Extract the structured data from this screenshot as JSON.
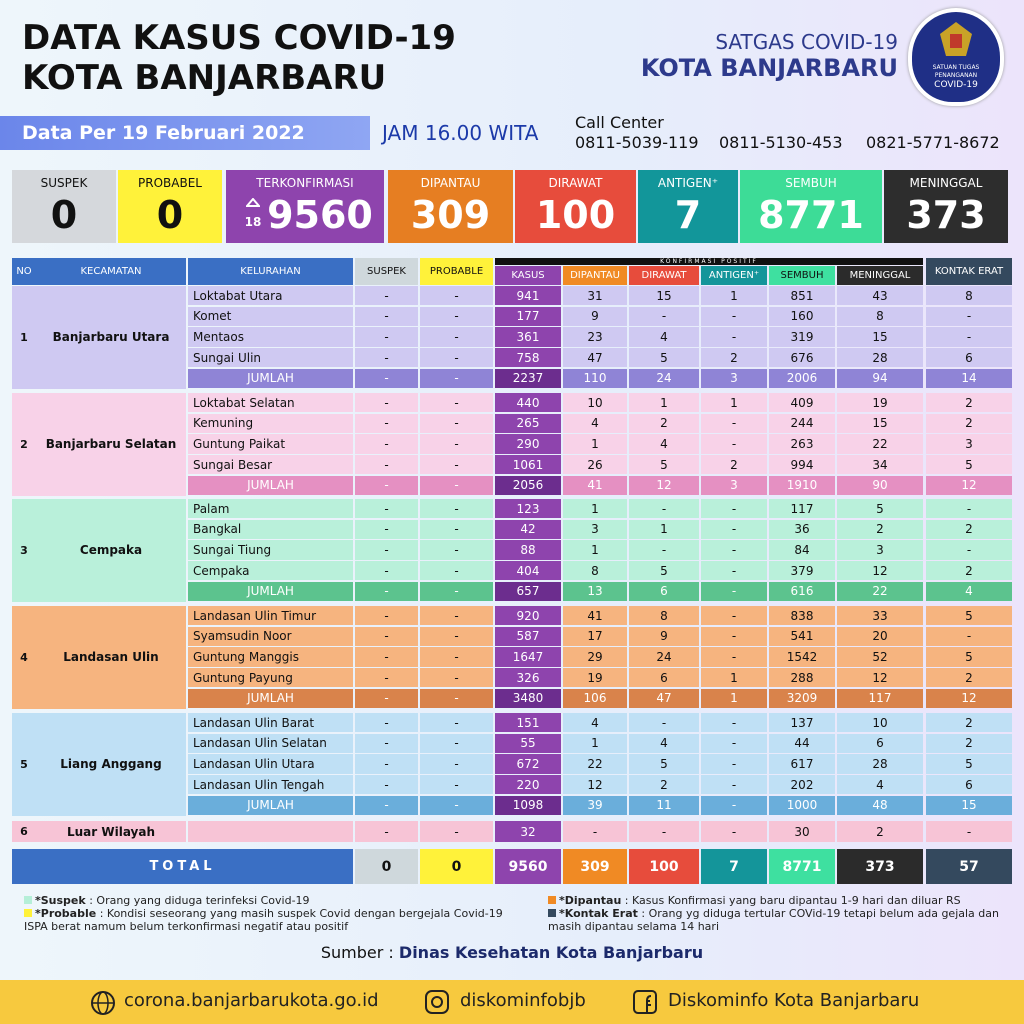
{
  "header": {
    "title_line1": "DATA KASUS COVID-19",
    "title_line2": "KOTA BANJARBARU",
    "org_line1": "SATGAS COVID-19",
    "org_line2": "KOTA BANJARBARU",
    "logo_text": [
      "SATUAN TUGAS",
      "PENANGANAN",
      "COVID-19"
    ]
  },
  "info": {
    "date": "Data Per 19 Februari 2022",
    "time": "JAM 16.00 WITA",
    "call_center_label": "Call Center",
    "phones": [
      "0811-5039-119",
      "0811-5130-453",
      "0821-5771-8672"
    ]
  },
  "summary": [
    {
      "label": "SUSPEK",
      "value": 0
    },
    {
      "label": "PROBABEL",
      "value": 0
    },
    {
      "label": "TERKONFIRMASI",
      "value": 9560,
      "increase": 18
    },
    {
      "label": "DIPANTAU",
      "value": 309
    },
    {
      "label": "DIRAWAT",
      "value": 100
    },
    {
      "label": "ANTIGEN⁺",
      "value": 7
    },
    {
      "label": "SEMBUH",
      "value": 8771
    },
    {
      "label": "MENINGGAL",
      "value": 373
    }
  ],
  "table": {
    "section_label": "KONFIRMASI POSITIF",
    "columns": [
      "NO",
      "KECAMATAN",
      "KELURAHAN",
      "SUSPEK",
      "PROBABLE",
      "KASUS",
      "DIPANTAU",
      "DIRAWAT",
      "ANTIGEN⁺",
      "SEMBUH",
      "MENINGGAL",
      "KONTAK ERAT"
    ],
    "groups": [
      {
        "no": "1",
        "kecamatan": "Banjarbaru Utara",
        "rows": [
          [
            "Loktabat Utara",
            "-",
            "-",
            941,
            31,
            15,
            1,
            851,
            43,
            8
          ],
          [
            "Komet",
            "-",
            "-",
            177,
            9,
            "-",
            "-",
            160,
            8,
            "-"
          ],
          [
            "Mentaos",
            "-",
            "-",
            361,
            23,
            4,
            "-",
            319,
            15,
            "-"
          ],
          [
            "Sungai Ulin",
            "-",
            "-",
            758,
            47,
            5,
            2,
            676,
            28,
            6
          ]
        ],
        "jumlah": [
          "JUMLAH",
          "-",
          "-",
          2237,
          110,
          24,
          3,
          2006,
          94,
          14
        ]
      },
      {
        "no": "2",
        "kecamatan": "Banjarbaru Selatan",
        "rows": [
          [
            "Loktabat Selatan",
            "-",
            "-",
            440,
            10,
            1,
            1,
            409,
            19,
            2
          ],
          [
            "Kemuning",
            "-",
            "-",
            265,
            4,
            2,
            "-",
            244,
            15,
            2
          ],
          [
            "Guntung Paikat",
            "-",
            "-",
            290,
            1,
            4,
            "-",
            263,
            22,
            3
          ],
          [
            "Sungai Besar",
            "-",
            "-",
            1061,
            26,
            5,
            2,
            994,
            34,
            5
          ]
        ],
        "jumlah": [
          "JUMLAH",
          "-",
          "-",
          2056,
          41,
          12,
          3,
          1910,
          90,
          12
        ]
      },
      {
        "no": "3",
        "kecamatan": "Cempaka",
        "rows": [
          [
            "Palam",
            "-",
            "-",
            123,
            1,
            "-",
            "-",
            117,
            5,
            "-"
          ],
          [
            "Bangkal",
            "-",
            "-",
            42,
            3,
            1,
            "-",
            36,
            2,
            2
          ],
          [
            "Sungai Tiung",
            "-",
            "-",
            88,
            1,
            "-",
            "-",
            84,
            3,
            "-"
          ],
          [
            "Cempaka",
            "-",
            "-",
            404,
            8,
            5,
            "-",
            379,
            12,
            2
          ]
        ],
        "jumlah": [
          "JUMLAH",
          "-",
          "-",
          657,
          13,
          6,
          "-",
          616,
          22,
          4
        ]
      },
      {
        "no": "4",
        "kecamatan": "Landasan Ulin",
        "rows": [
          [
            "Landasan Ulin Timur",
            "-",
            "-",
            920,
            41,
            8,
            "-",
            838,
            33,
            5
          ],
          [
            "Syamsudin Noor",
            "-",
            "-",
            587,
            17,
            9,
            "-",
            541,
            20,
            "-"
          ],
          [
            "Guntung Manggis",
            "-",
            "-",
            1647,
            29,
            24,
            "-",
            1542,
            52,
            5
          ],
          [
            "Guntung Payung",
            "-",
            "-",
            326,
            19,
            6,
            1,
            288,
            12,
            2
          ]
        ],
        "jumlah": [
          "JUMLAH",
          "-",
          "-",
          3480,
          106,
          47,
          1,
          3209,
          117,
          12
        ]
      },
      {
        "no": "5",
        "kecamatan": "Liang Anggang",
        "rows": [
          [
            "Landasan Ulin Barat",
            "-",
            "-",
            151,
            4,
            "-",
            "-",
            137,
            10,
            2
          ],
          [
            "Landasan Ulin Selatan",
            "-",
            "-",
            55,
            1,
            4,
            "-",
            44,
            6,
            2
          ],
          [
            "Landasan Ulin Utara",
            "-",
            "-",
            672,
            22,
            5,
            "-",
            617,
            28,
            5
          ],
          [
            "Landasan Ulin Tengah",
            "-",
            "-",
            220,
            12,
            2,
            "-",
            202,
            4,
            6
          ]
        ],
        "jumlah": [
          "JUMLAH",
          "-",
          "-",
          1098,
          39,
          11,
          "-",
          1000,
          48,
          15
        ]
      }
    ],
    "other": {
      "no": "6",
      "kecamatan": "Luar Wilayah",
      "values": [
        "-",
        "-",
        32,
        "-",
        "-",
        "-",
        30,
        2,
        "-"
      ]
    },
    "total": {
      "label": "TOTAL",
      "values": [
        0,
        0,
        9560,
        309,
        100,
        7,
        8771,
        373,
        57
      ]
    }
  },
  "notes": {
    "left": [
      {
        "term": "*Suspek",
        "text": ": Orang yang diduga terinfeksi Covid-19"
      },
      {
        "term": "*Probable",
        "text": ": Kondisi seseorang yang masih suspek Covid dengan bergejala Covid-19 ISPA berat namum belum terkonfirmasi negatif atau positif"
      }
    ],
    "right": [
      {
        "term": "*Dipantau",
        "text": ": Kasus Konfirmasi yang baru dipantau 1-9 hari dan diluar RS"
      },
      {
        "term": "*Kontak Erat",
        "text": ": Orang yg diduga tertular COVid-19 tetapi belum ada gejala dan masih dipantau selama 14 hari"
      }
    ]
  },
  "source": {
    "label": "Sumber :",
    "name": "Dinas Kesehatan Kota Banjarbaru"
  },
  "footer": {
    "website": "corona.banjarbarukota.go.id",
    "instagram": "diskominfobjb",
    "facebook": "Diskominfo Kota Banjarbaru"
  }
}
